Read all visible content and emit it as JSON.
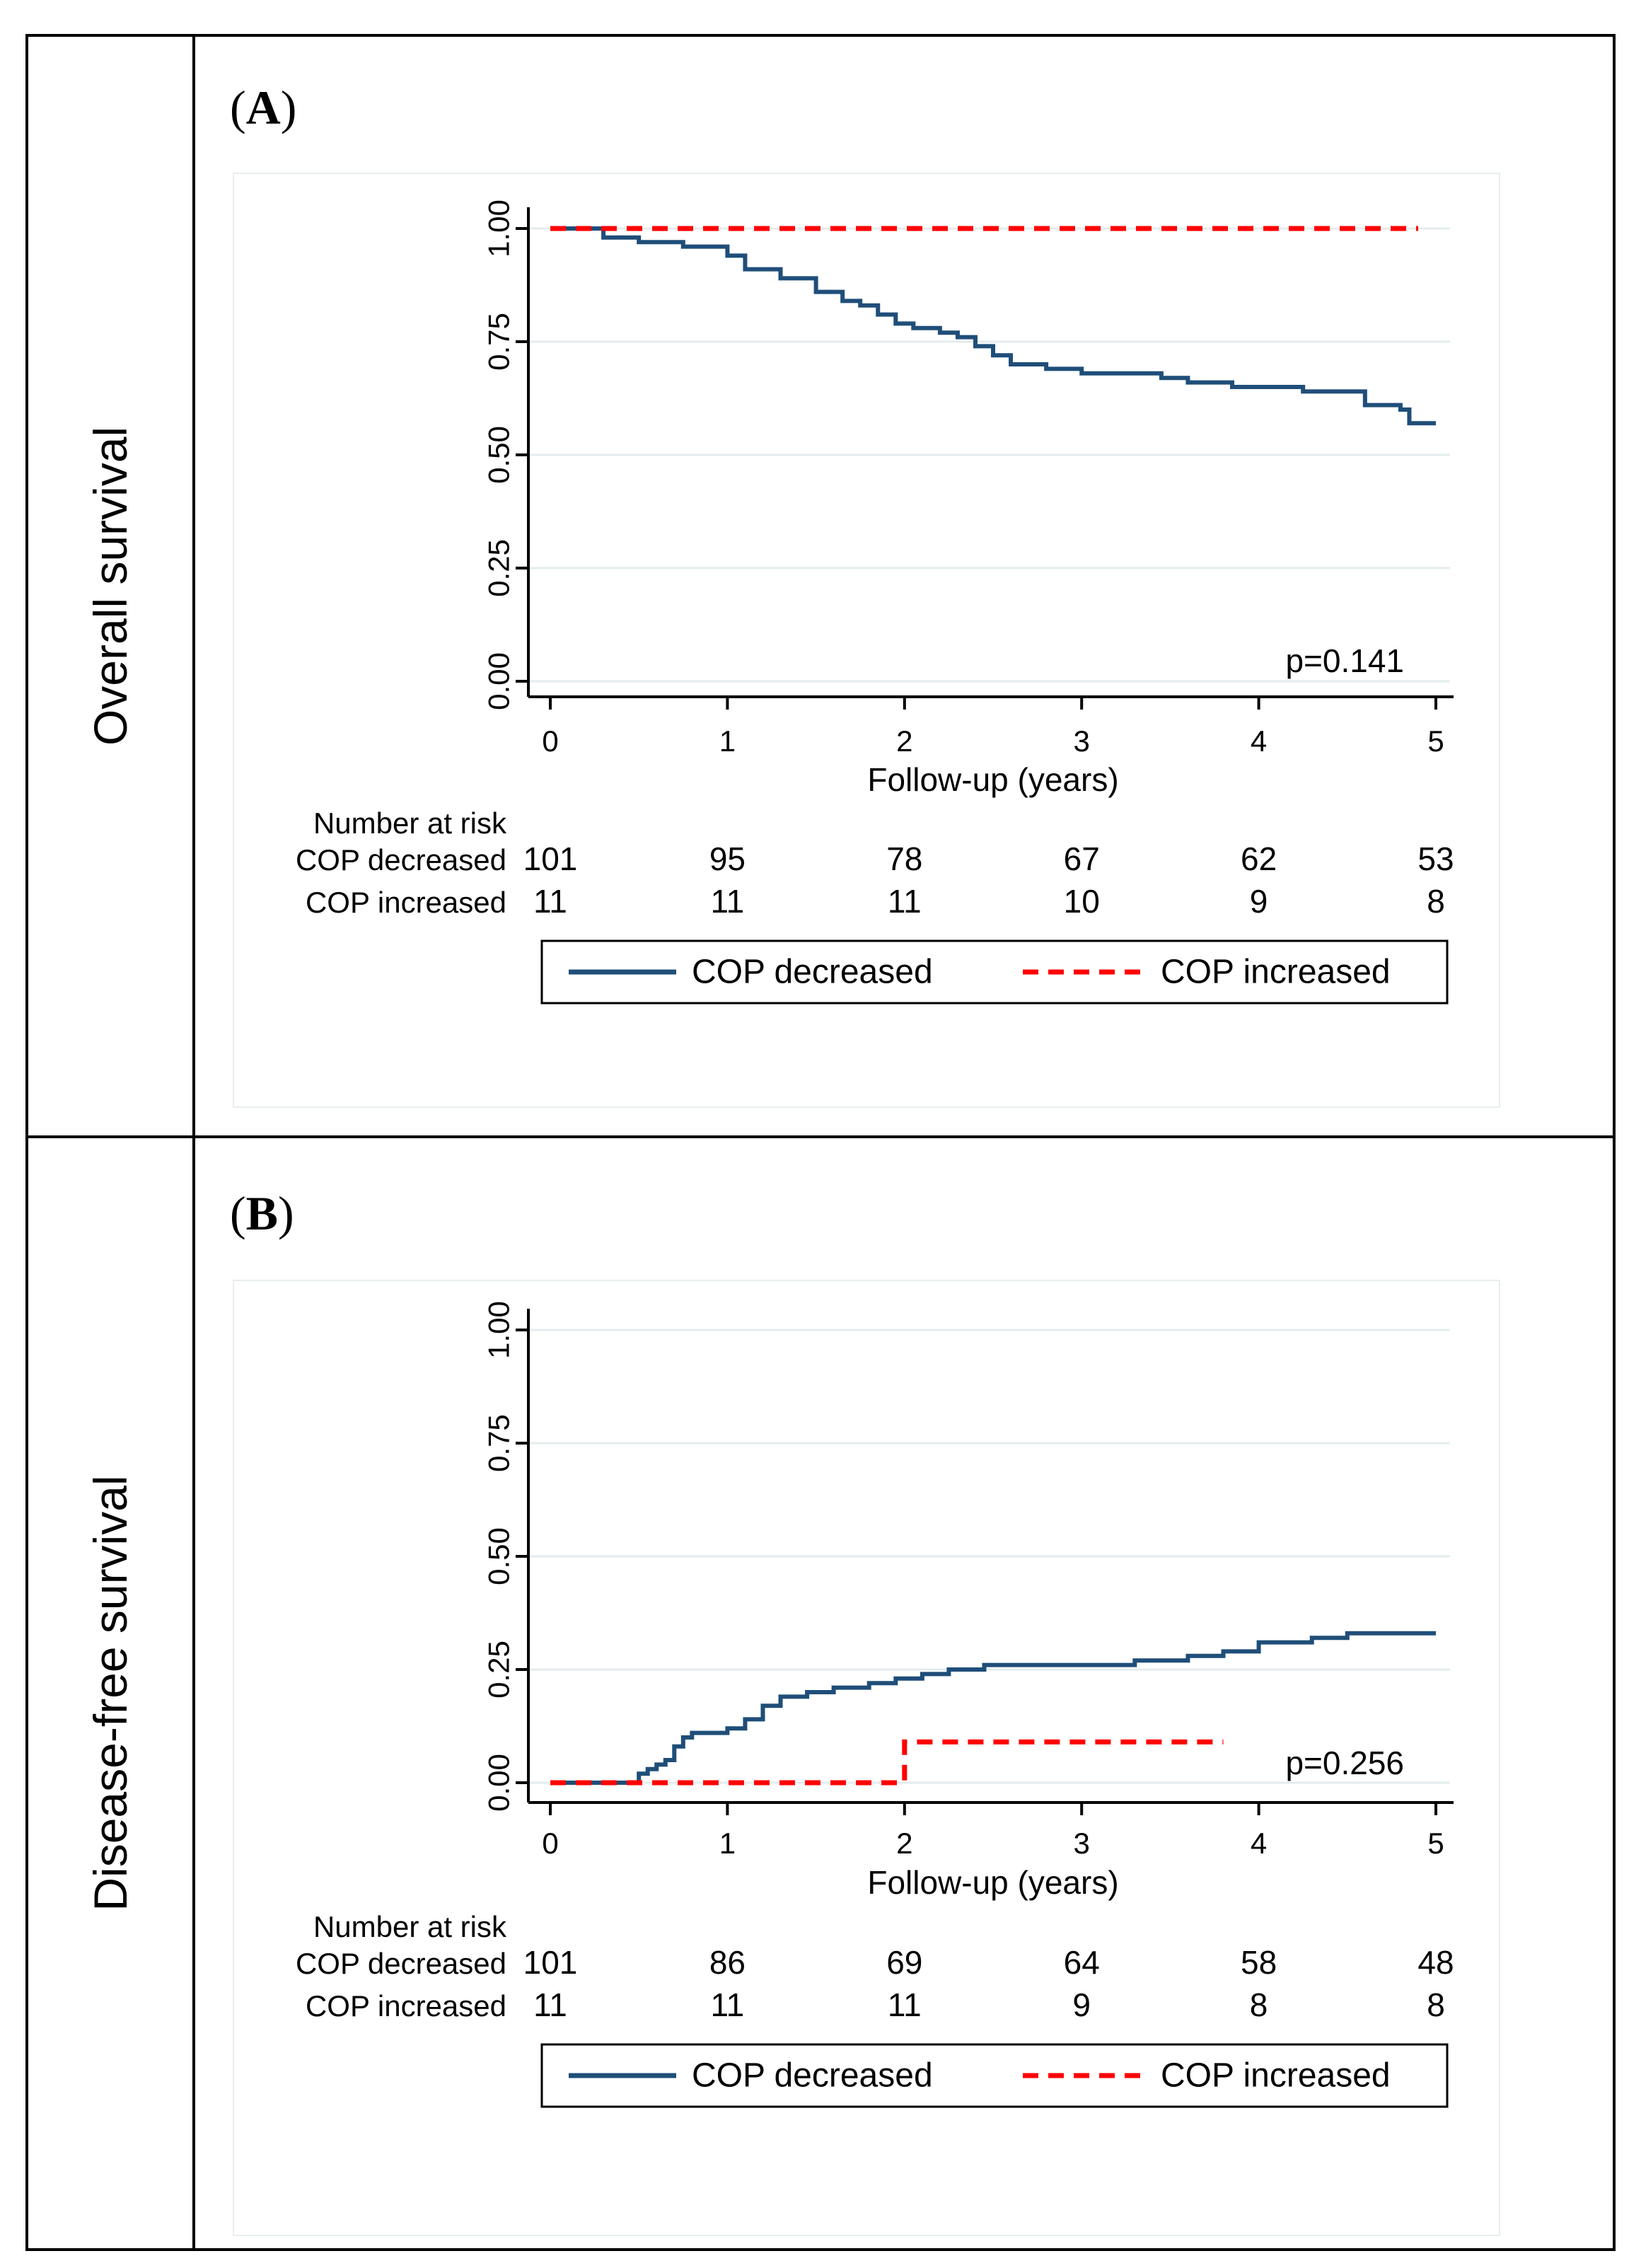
{
  "chart_data": [
    {
      "type": "line",
      "panel_label": "A",
      "row_title": "Overall survival",
      "xlabel": "Follow-up (years)",
      "ylabel": "",
      "xlim": [
        0,
        5
      ],
      "ylim": [
        0,
        1
      ],
      "x_ticks": [
        "0",
        "1",
        "2",
        "3",
        "4",
        "5"
      ],
      "y_ticks": [
        "0.00",
        "0.25",
        "0.50",
        "0.75",
        "1.00"
      ],
      "grid": true,
      "annotation": "p=0.141",
      "legend": [
        "COP decreased",
        "COP increased"
      ],
      "series": [
        {
          "name": "COP decreased",
          "color": "#1f4e79",
          "style": "solid",
          "x": [
            0,
            0.3,
            0.5,
            0.75,
            1.0,
            1.1,
            1.3,
            1.5,
            1.65,
            1.75,
            1.85,
            1.95,
            2.05,
            2.2,
            2.3,
            2.4,
            2.5,
            2.6,
            2.8,
            3.0,
            3.15,
            3.3,
            3.45,
            3.6,
            3.85,
            4.05,
            4.25,
            4.5,
            4.6,
            4.8,
            4.85,
            5.0
          ],
          "y": [
            1.0,
            0.98,
            0.97,
            0.96,
            0.94,
            0.91,
            0.89,
            0.86,
            0.84,
            0.83,
            0.81,
            0.79,
            0.78,
            0.77,
            0.76,
            0.74,
            0.72,
            0.7,
            0.69,
            0.68,
            0.68,
            0.68,
            0.67,
            0.66,
            0.65,
            0.65,
            0.64,
            0.64,
            0.61,
            0.6,
            0.57,
            0.57
          ]
        },
        {
          "name": "COP increased",
          "color": "#ff0000",
          "style": "dashed",
          "x": [
            0,
            4.9
          ],
          "y": [
            1.0,
            1.0
          ]
        }
      ],
      "risk_table": {
        "title": "Number at risk",
        "times": [
          "0",
          "1",
          "2",
          "3",
          "4",
          "5"
        ],
        "rows": [
          {
            "label": "COP decreased",
            "values": [
              "101",
              "95",
              "78",
              "67",
              "62",
              "53"
            ]
          },
          {
            "label": "COP increased",
            "values": [
              "11",
              "11",
              "11",
              "10",
              "9",
              "8"
            ]
          }
        ]
      }
    },
    {
      "type": "line",
      "panel_label": "B",
      "row_title": "Disease-free survival",
      "xlabel": "Follow-up (years)",
      "ylabel": "",
      "xlim": [
        0,
        5
      ],
      "ylim": [
        0,
        1
      ],
      "x_ticks": [
        "0",
        "1",
        "2",
        "3",
        "4",
        "5"
      ],
      "y_ticks": [
        "0.00",
        "0.25",
        "0.50",
        "0.75",
        "1.00"
      ],
      "grid": true,
      "annotation": "p=0.256",
      "legend": [
        "COP decreased",
        "COP increased"
      ],
      "series": [
        {
          "name": "COP decreased",
          "color": "#1f4e79",
          "style": "solid",
          "x": [
            0,
            0.45,
            0.5,
            0.55,
            0.6,
            0.65,
            0.7,
            0.75,
            0.8,
            1.0,
            1.1,
            1.2,
            1.3,
            1.45,
            1.6,
            1.8,
            1.95,
            2.1,
            2.25,
            2.45,
            2.6,
            3.0,
            3.3,
            3.6,
            3.8,
            4.0,
            4.3,
            4.5,
            5.0
          ],
          "y": [
            0.0,
            0.0,
            0.02,
            0.03,
            0.04,
            0.05,
            0.08,
            0.1,
            0.11,
            0.12,
            0.14,
            0.17,
            0.19,
            0.2,
            0.21,
            0.22,
            0.23,
            0.24,
            0.25,
            0.26,
            0.26,
            0.26,
            0.27,
            0.28,
            0.29,
            0.31,
            0.32,
            0.33,
            0.33
          ]
        },
        {
          "name": "COP increased",
          "color": "#ff0000",
          "style": "dashed",
          "x": [
            0,
            2.0,
            2.0,
            3.8
          ],
          "y": [
            0.0,
            0.0,
            0.09,
            0.09
          ]
        }
      ],
      "risk_table": {
        "title": "Number at risk",
        "times": [
          "0",
          "1",
          "2",
          "3",
          "4",
          "5"
        ],
        "rows": [
          {
            "label": "COP decreased",
            "values": [
              "101",
              "86",
              "69",
              "64",
              "58",
              "48"
            ]
          },
          {
            "label": "COP increased",
            "values": [
              "11",
              "11",
              "11",
              "9",
              "8",
              "8"
            ]
          }
        ]
      }
    }
  ]
}
